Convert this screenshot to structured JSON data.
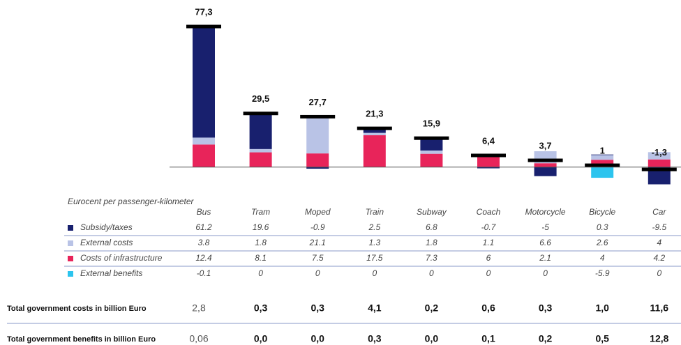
{
  "chart_data": {
    "type": "stacked_bar",
    "y_label": "Eurocent per passenger-kilometer",
    "categories": [
      "Bus",
      "Tram",
      "Moped",
      "Train",
      "Subway",
      "Coach",
      "Motorcycle",
      "Bicycle",
      "Car"
    ],
    "series": [
      {
        "name": "Subsidy/taxes",
        "color": "#18206e",
        "values": [
          61.2,
          19.6,
          -0.9,
          2.5,
          6.8,
          -0.7,
          -5,
          0.3,
          -9.5
        ]
      },
      {
        "name": "External costs",
        "color": "#b9c3e6",
        "values": [
          3.8,
          1.8,
          21.1,
          1.3,
          1.8,
          1.1,
          6.6,
          2.6,
          4
        ]
      },
      {
        "name": "Costs of infrastructure",
        "color": "#e8245a",
        "values": [
          12.4,
          8.1,
          7.5,
          17.5,
          7.3,
          6,
          2.1,
          4,
          4.2
        ]
      },
      {
        "name": "External benefits",
        "color": "#2cc4ee",
        "values": [
          -0.1,
          0,
          0,
          0,
          0,
          0,
          0,
          -5.9,
          0
        ]
      }
    ],
    "totals": [
      77.3,
      29.5,
      27.7,
      21.3,
      15.9,
      6.4,
      3.7,
      1,
      -1.3
    ],
    "total_labels": [
      "77,3",
      "29,5",
      "27,7",
      "21,3",
      "15,9",
      "6,4",
      "3,7",
      "1",
      "-1,3"
    ],
    "ylim": [
      -12,
      80
    ]
  },
  "table": {
    "rows": [
      {
        "label": "Total government costs in billion Euro",
        "values": [
          "2,8",
          "0,3",
          "0,3",
          "4,1",
          "0,2",
          "0,6",
          "0,3",
          "1,0",
          "11,6"
        ]
      },
      {
        "label": "Total government benefits in billion Euro",
        "values": [
          "0,06",
          "0,0",
          "0,0",
          "0,3",
          "0,0",
          "0,1",
          "0,2",
          "0,5",
          "12,8"
        ]
      }
    ]
  }
}
